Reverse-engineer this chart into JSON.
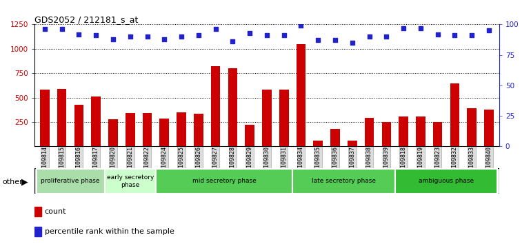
{
  "title": "GDS2052 / 212181_s_at",
  "samples": [
    "GSM109814",
    "GSM109815",
    "GSM109816",
    "GSM109817",
    "GSM109820",
    "GSM109821",
    "GSM109822",
    "GSM109824",
    "GSM109825",
    "GSM109826",
    "GSM109827",
    "GSM109828",
    "GSM109829",
    "GSM109830",
    "GSM109831",
    "GSM109834",
    "GSM109835",
    "GSM109836",
    "GSM109837",
    "GSM109838",
    "GSM109839",
    "GSM109818",
    "GSM109819",
    "GSM109823",
    "GSM109832",
    "GSM109833",
    "GSM109840"
  ],
  "counts": [
    580,
    590,
    430,
    510,
    275,
    340,
    340,
    285,
    350,
    335,
    820,
    800,
    220,
    580,
    580,
    1050,
    60,
    180,
    60,
    295,
    250,
    305,
    305,
    250,
    645,
    390,
    375
  ],
  "percentiles": [
    96,
    96,
    92,
    91,
    88,
    90,
    90,
    88,
    90,
    91,
    96,
    86,
    93,
    91,
    91,
    99,
    87,
    87,
    85,
    90,
    90,
    97,
    97,
    92,
    91,
    91,
    95
  ],
  "bar_color": "#cc0000",
  "dot_color": "#2222cc",
  "phases": [
    {
      "label": "proliferative phase",
      "start": 0,
      "end": 4,
      "color": "#aaddaa"
    },
    {
      "label": "early secretory\nphase",
      "start": 4,
      "end": 7,
      "color": "#ccffcc"
    },
    {
      "label": "mid secretory phase",
      "start": 7,
      "end": 15,
      "color": "#55cc55"
    },
    {
      "label": "late secretory phase",
      "start": 15,
      "end": 21,
      "color": "#55cc55"
    },
    {
      "label": "ambiguous phase",
      "start": 21,
      "end": 27,
      "color": "#33bb33"
    }
  ],
  "ylim_left": [
    0,
    1250
  ],
  "ylim_right": [
    0,
    100
  ],
  "yticks_left": [
    250,
    500,
    750,
    1000,
    1250
  ],
  "yticks_right": [
    0,
    25,
    50,
    75,
    100
  ],
  "background_color": "#ffffff",
  "plot_bg": "#ffffff"
}
